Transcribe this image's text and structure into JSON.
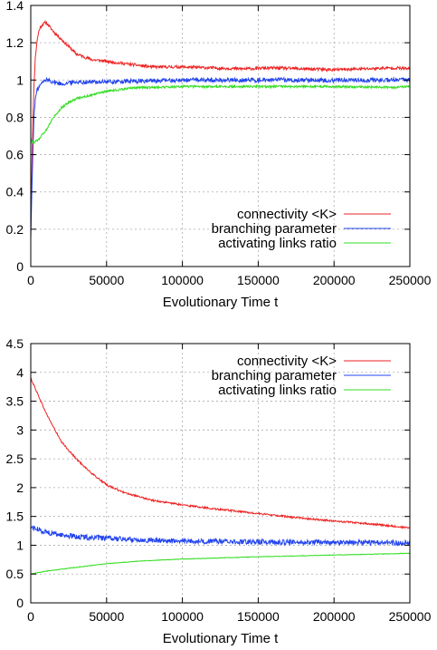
{
  "colors": {
    "connectivity": "#ee2222",
    "branching": "#2244ee",
    "activating": "#33dd22"
  },
  "chart_data": [
    {
      "type": "line",
      "xlabel": "Evolutionary Time t",
      "ylabel": "",
      "xlim": [
        0,
        250000
      ],
      "ylim": [
        0,
        1.4
      ],
      "x_ticks": [
        0,
        50000,
        100000,
        150000,
        200000,
        250000
      ],
      "x_tick_labels": [
        "0",
        "50000",
        "100000",
        "150000",
        "200000",
        "250000"
      ],
      "y_ticks": [
        0,
        0.2,
        0.4,
        0.6,
        0.8,
        1.0,
        1.2,
        1.4
      ],
      "y_tick_labels": [
        "0",
        "0.2",
        "0.4",
        "0.6",
        "0.8",
        "1",
        "1.2",
        "1.4"
      ],
      "grid": true,
      "legend_position": "bottom-right",
      "series": [
        {
          "name": "connectivity <K>",
          "color_key": "connectivity",
          "noise": 0.008,
          "x": [
            0,
            1000,
            2000,
            3000,
            4000,
            5000,
            6000,
            8000,
            10000,
            12000,
            15000,
            20000,
            25000,
            30000,
            40000,
            50000,
            60000,
            70000,
            80000,
            90000,
            100000,
            120000,
            140000,
            160000,
            180000,
            200000,
            220000,
            240000,
            250000
          ],
          "values": [
            0.2,
            0.65,
            0.95,
            1.12,
            1.2,
            1.25,
            1.28,
            1.3,
            1.31,
            1.29,
            1.26,
            1.22,
            1.18,
            1.14,
            1.11,
            1.1,
            1.09,
            1.08,
            1.07,
            1.07,
            1.07,
            1.065,
            1.06,
            1.065,
            1.06,
            1.055,
            1.06,
            1.065,
            1.06
          ]
        },
        {
          "name": "branching parameter",
          "color_key": "branching",
          "noise": 0.012,
          "x": [
            0,
            1000,
            2000,
            3000,
            4000,
            5000,
            6000,
            8000,
            10000,
            12000,
            15000,
            20000,
            30000,
            50000,
            100000,
            150000,
            200000,
            250000
          ],
          "values": [
            0.15,
            0.5,
            0.78,
            0.9,
            0.94,
            0.96,
            0.97,
            0.99,
            1.0,
            1.0,
            0.99,
            0.98,
            0.99,
            0.99,
            1.0,
            1.0,
            1.0,
            1.0
          ]
        },
        {
          "name": "activating links ratio",
          "color_key": "activating",
          "noise": 0.006,
          "x": [
            0,
            1000,
            2000,
            3000,
            5000,
            8000,
            10000,
            12000,
            15000,
            20000,
            25000,
            30000,
            40000,
            50000,
            60000,
            70000,
            80000,
            100000,
            150000,
            200000,
            240000,
            250000
          ],
          "values": [
            0.68,
            0.67,
            0.66,
            0.67,
            0.68,
            0.71,
            0.73,
            0.76,
            0.8,
            0.85,
            0.88,
            0.9,
            0.92,
            0.94,
            0.95,
            0.96,
            0.96,
            0.965,
            0.965,
            0.965,
            0.96,
            0.965
          ]
        }
      ]
    },
    {
      "type": "line",
      "xlabel": "Evolutionary Time t",
      "ylabel": "",
      "xlim": [
        0,
        250000
      ],
      "ylim": [
        0,
        4.5
      ],
      "x_ticks": [
        0,
        50000,
        100000,
        150000,
        200000,
        250000
      ],
      "x_tick_labels": [
        "0",
        "50000",
        "100000",
        "150000",
        "200000",
        "250000"
      ],
      "y_ticks": [
        0,
        0.5,
        1.0,
        1.5,
        2.0,
        2.5,
        3.0,
        3.5,
        4.0,
        4.5
      ],
      "y_tick_labels": [
        "0",
        "0.5",
        "1",
        "1.5",
        "2",
        "2.5",
        "3",
        "3.5",
        "4",
        "4.5"
      ],
      "grid": true,
      "legend_position": "top-right",
      "series": [
        {
          "name": "connectivity <K>",
          "color_key": "connectivity",
          "noise": 0.015,
          "x": [
            0,
            5000,
            10000,
            20000,
            30000,
            40000,
            50000,
            60000,
            70000,
            80000,
            100000,
            125000,
            150000,
            175000,
            200000,
            225000,
            250000
          ],
          "values": [
            3.9,
            3.6,
            3.3,
            2.8,
            2.5,
            2.25,
            2.05,
            1.93,
            1.85,
            1.78,
            1.7,
            1.62,
            1.55,
            1.48,
            1.42,
            1.37,
            1.3
          ]
        },
        {
          "name": "branching parameter",
          "color_key": "branching",
          "noise": 0.045,
          "x": [
            0,
            5000,
            10000,
            20000,
            30000,
            50000,
            75000,
            100000,
            150000,
            200000,
            250000
          ],
          "values": [
            1.32,
            1.27,
            1.23,
            1.18,
            1.15,
            1.12,
            1.09,
            1.07,
            1.06,
            1.05,
            1.04
          ]
        },
        {
          "name": "activating links ratio",
          "color_key": "activating",
          "noise": 0.005,
          "x": [
            0,
            10000,
            25000,
            50000,
            75000,
            100000,
            150000,
            200000,
            250000
          ],
          "values": [
            0.5,
            0.55,
            0.6,
            0.68,
            0.73,
            0.76,
            0.8,
            0.83,
            0.86
          ]
        }
      ]
    }
  ]
}
